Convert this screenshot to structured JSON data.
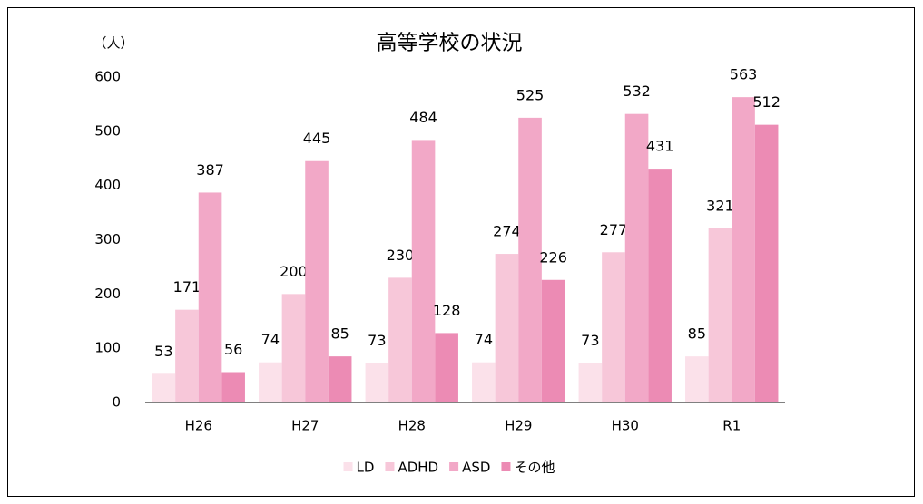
{
  "chart_data": {
    "type": "bar",
    "title": "高等学校の状況",
    "y_label": "（人）",
    "categories": [
      "H26",
      "H27",
      "H28",
      "H29",
      "H30",
      "R1"
    ],
    "series": [
      {
        "name": "LD",
        "color": "#fbe1ea",
        "values": [
          53,
          74,
          73,
          74,
          73,
          85
        ]
      },
      {
        "name": "ADHD",
        "color": "#f7c7d9",
        "values": [
          171,
          200,
          230,
          274,
          277,
          321
        ]
      },
      {
        "name": "ASD",
        "color": "#f2a8c7",
        "values": [
          387,
          445,
          484,
          525,
          532,
          563
        ]
      },
      {
        "name": "その他",
        "color": "#ec8bb4",
        "values": [
          56,
          85,
          128,
          226,
          431,
          512
        ]
      }
    ],
    "ylim": [
      0,
      600
    ],
    "yticks": [
      0,
      100,
      200,
      300,
      400,
      500,
      600
    ],
    "grid": false,
    "legend": "bottom"
  }
}
